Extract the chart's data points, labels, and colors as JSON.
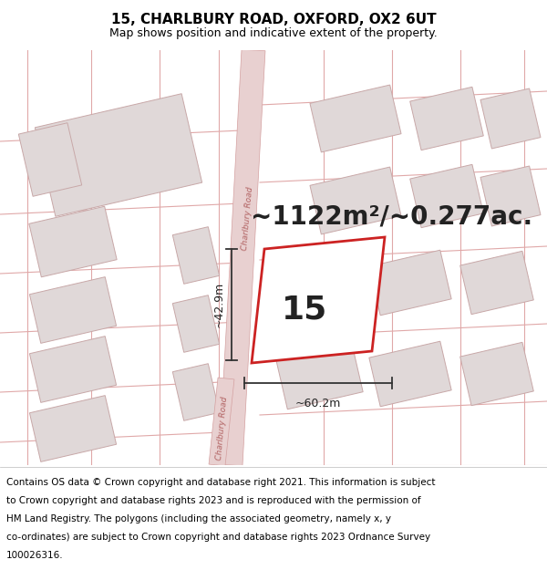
{
  "title": "15, CHARLBURY ROAD, OXFORD, OX2 6UT",
  "subtitle": "Map shows position and indicative extent of the property.",
  "area_text": "~1122m²/~0.277ac.",
  "number_label": "15",
  "dim_width": "~60.2m",
  "dim_height": "~42.9m",
  "map_bg": "#f7f3f3",
  "road_color": "#e8d0d0",
  "road_edge_color": "#d4a0a0",
  "building_color": "#e0d8d8",
  "building_edge_color": "#c8a8a8",
  "highlight_color": "#cc2222",
  "highlight_fill": "#ffffff",
  "dim_color": "#333333",
  "road_label_color": "#b06060",
  "title_fontsize": 11,
  "subtitle_fontsize": 9,
  "area_fontsize": 20,
  "number_fontsize": 26,
  "dim_fontsize": 9,
  "footer_fontsize": 7.5,
  "footer_lines": [
    "Contains OS data © Crown copyright and database right 2021. This information is subject",
    "to Crown copyright and database rights 2023 and is reproduced with the permission of",
    "HM Land Registry. The polygons (including the associated geometry, namely x, y",
    "co-ordinates) are subject to Crown copyright and database rights 2023 Ordnance Survey",
    "100026316."
  ]
}
